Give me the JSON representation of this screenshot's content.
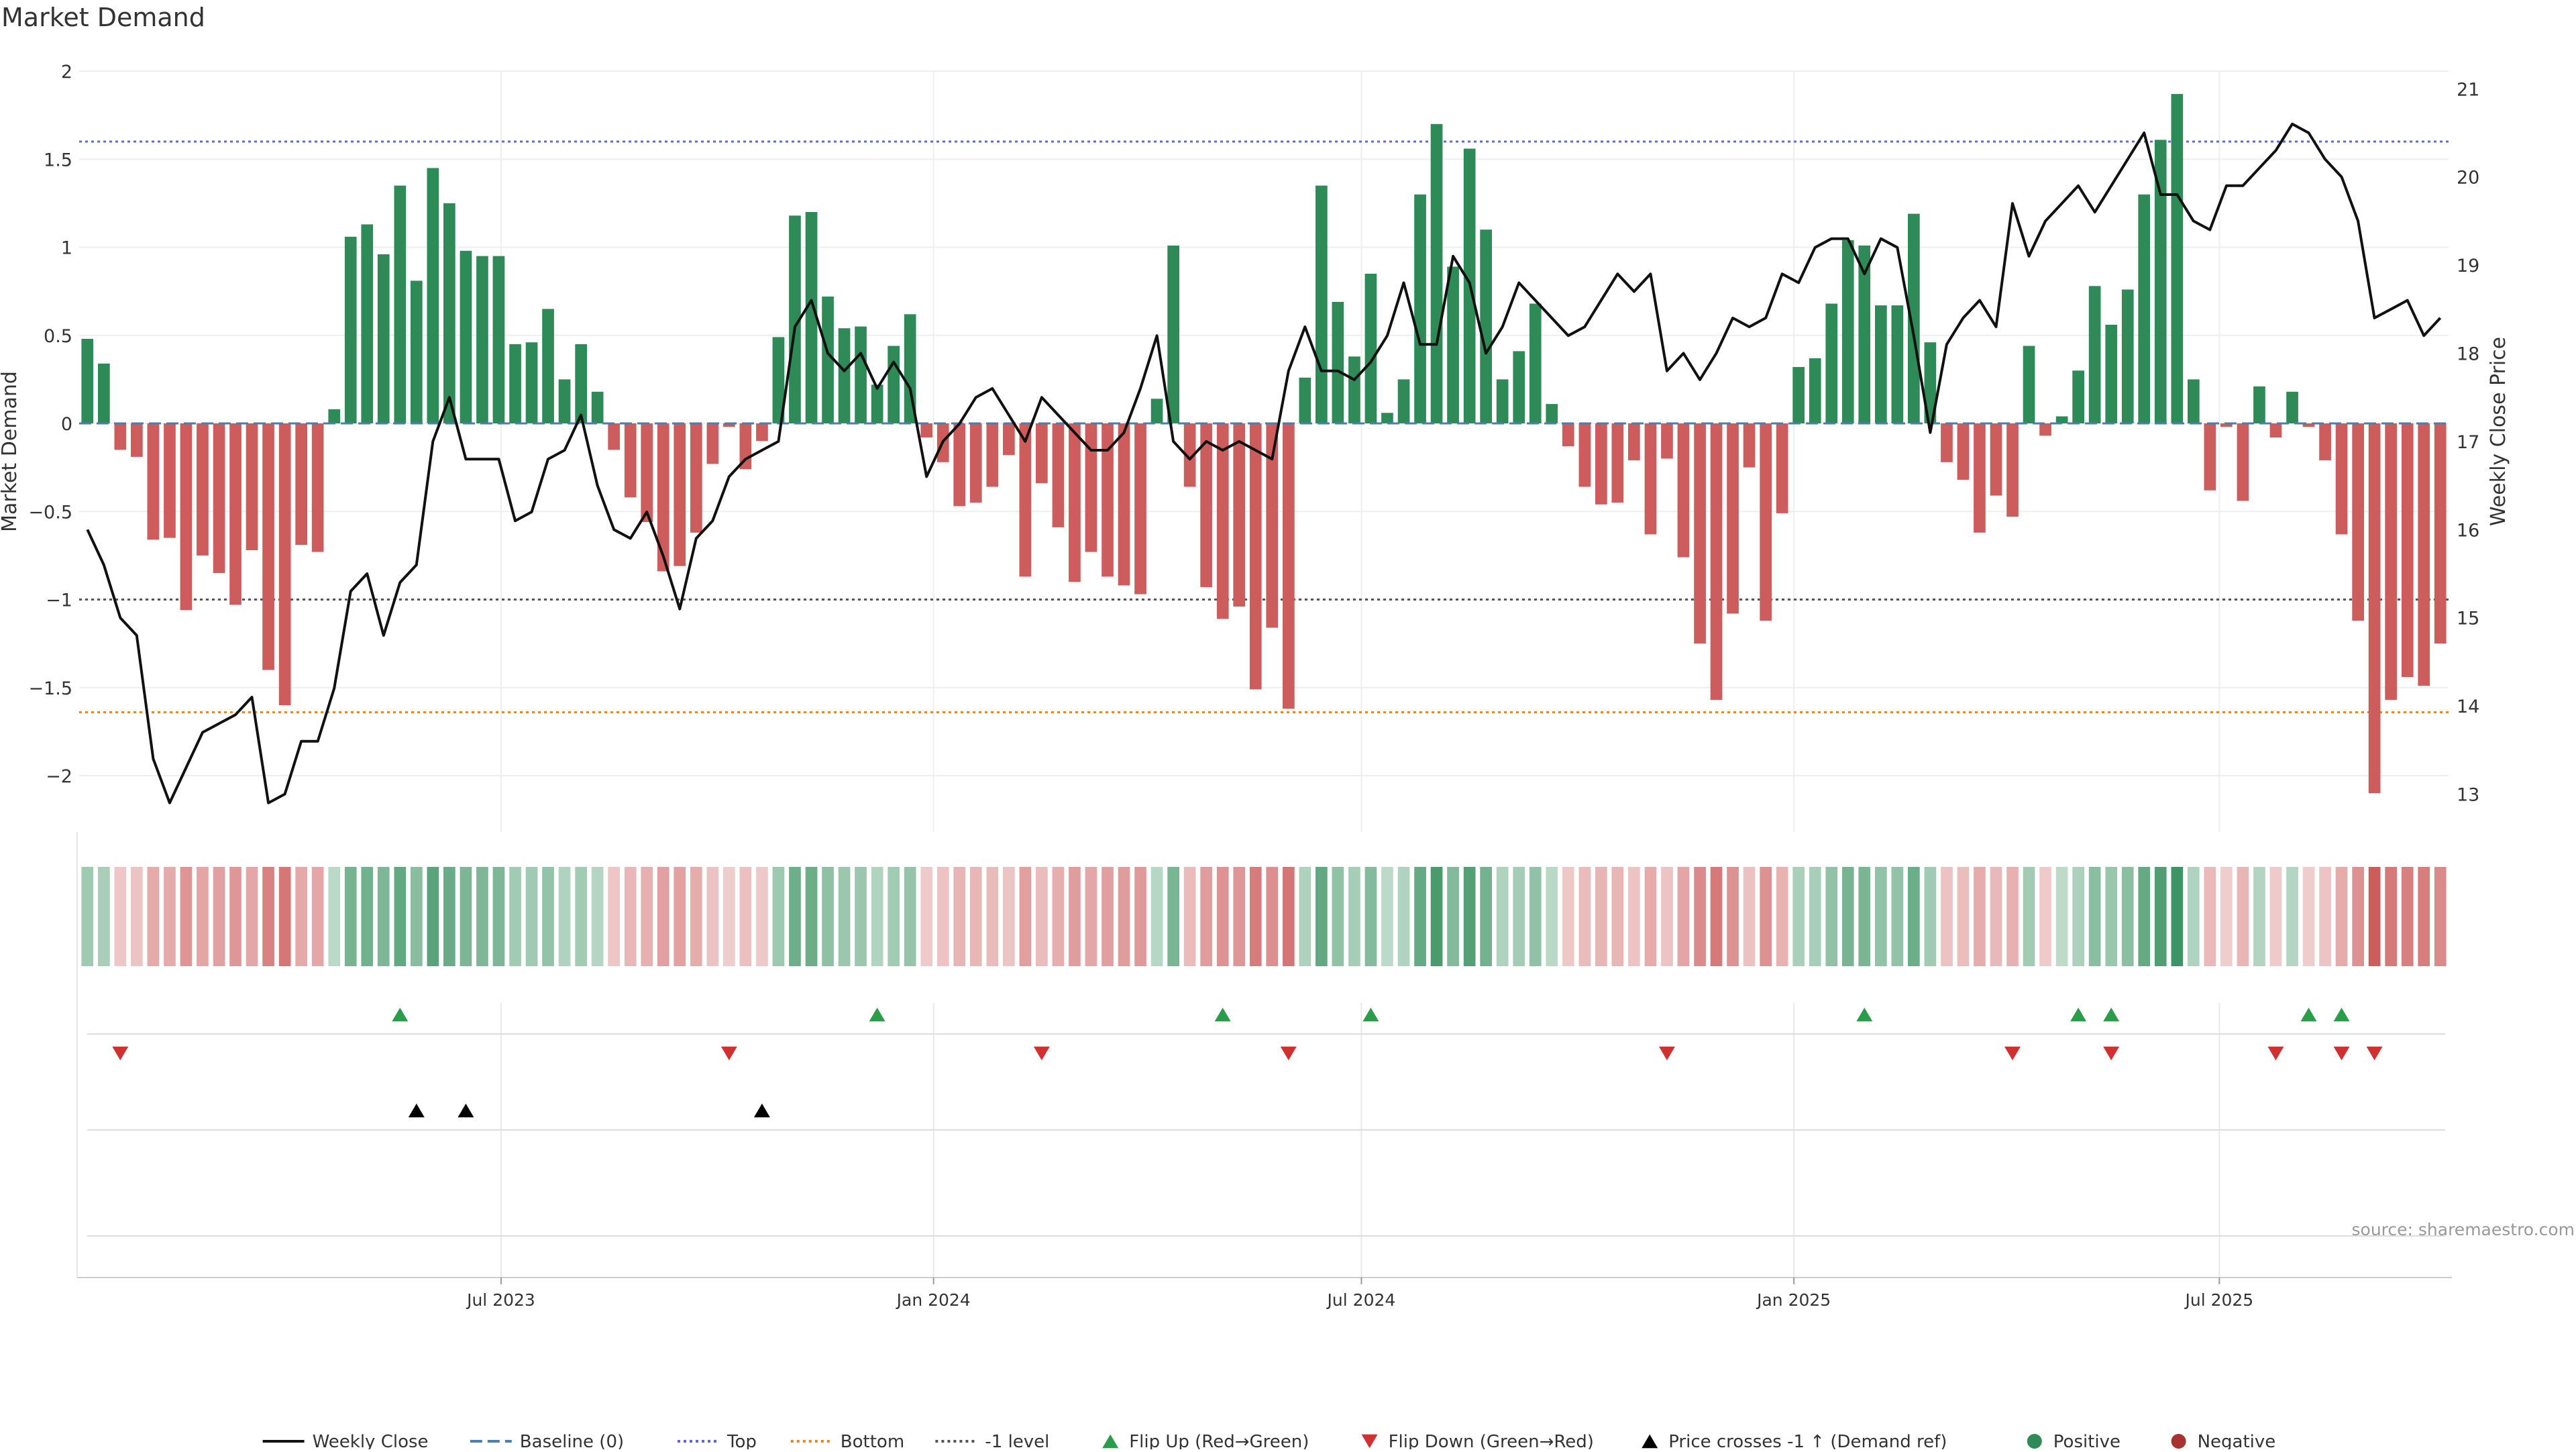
{
  "title": "Market Demand",
  "source": "source: sharemaestro.com",
  "colors": {
    "positive": "#2e8b57",
    "negative": "#cd5c5c",
    "price": "#111111",
    "top_line": "#5b6bd6",
    "bottom_line": "#e0882a",
    "minus1_line": "#555555",
    "flip_up": "#2a9d4a",
    "flip_down": "#d03030",
    "cross": "#000000"
  },
  "chart_data": {
    "type": "bar",
    "start_date": "2023-01-06",
    "week_step_days": 7,
    "demand": [
      0.48,
      0.34,
      -0.15,
      -0.19,
      -0.66,
      -0.65,
      -1.06,
      -0.75,
      -0.85,
      -1.03,
      -0.72,
      -1.4,
      -1.6,
      -0.69,
      -0.73,
      0.08,
      1.06,
      1.13,
      0.96,
      1.35,
      0.81,
      1.45,
      1.25,
      0.98,
      0.95,
      0.95,
      0.45,
      0.46,
      0.65,
      0.25,
      0.45,
      0.18,
      -0.15,
      -0.42,
      -0.56,
      -0.84,
      -0.81,
      -0.62,
      -0.23,
      -0.02,
      -0.26,
      -0.1,
      0.49,
      1.18,
      1.2,
      0.72,
      0.54,
      0.55,
      0.22,
      0.44,
      0.62,
      -0.08,
      -0.22,
      -0.47,
      -0.45,
      -0.36,
      -0.18,
      -0.87,
      -0.34,
      -0.59,
      -0.9,
      -0.73,
      -0.87,
      -0.92,
      -0.97,
      0.14,
      1.01,
      -0.36,
      -0.93,
      -1.11,
      -1.04,
      -1.51,
      -1.16,
      -1.62,
      0.26,
      1.35,
      0.69,
      0.38,
      0.85,
      0.06,
      0.25,
      1.3,
      1.7,
      0.89,
      1.56,
      1.1,
      0.25,
      0.41,
      0.68,
      0.11,
      -0.13,
      -0.36,
      -0.46,
      -0.45,
      -0.21,
      -0.63,
      -0.2,
      -0.76,
      -1.25,
      -1.57,
      -1.08,
      -0.25,
      -1.12,
      -0.51,
      0.32,
      0.37,
      0.68,
      1.04,
      1.01,
      0.67,
      0.67,
      1.19,
      0.46,
      -0.22,
      -0.32,
      -0.62,
      -0.41,
      -0.53,
      0.44,
      -0.07,
      0.04,
      0.3,
      0.78,
      0.56,
      0.76,
      1.3,
      1.61,
      1.87,
      0.25,
      -0.38,
      -0.02,
      -0.44,
      0.21,
      -0.08,
      0.18,
      -0.02,
      -0.21,
      -0.63,
      -1.12,
      -2.1,
      -1.57,
      -1.44,
      -1.49,
      -1.25
    ],
    "weekly_close": [
      16.0,
      15.6,
      15.0,
      14.8,
      13.4,
      12.9,
      13.3,
      13.7,
      13.8,
      13.9,
      14.1,
      12.9,
      13.0,
      13.6,
      13.6,
      14.2,
      15.3,
      15.5,
      14.8,
      15.4,
      15.6,
      17.0,
      17.5,
      16.8,
      16.8,
      16.8,
      16.1,
      16.2,
      16.8,
      16.9,
      17.3,
      16.5,
      16.0,
      15.9,
      16.2,
      15.7,
      15.1,
      15.9,
      16.1,
      16.6,
      16.8,
      16.9,
      17.0,
      18.3,
      18.6,
      18.0,
      17.8,
      18.0,
      17.6,
      17.9,
      17.6,
      16.6,
      17.0,
      17.2,
      17.5,
      17.6,
      17.3,
      17.0,
      17.5,
      17.3,
      17.1,
      16.9,
      16.9,
      17.1,
      17.6,
      18.2,
      17.0,
      16.8,
      17.0,
      16.9,
      17.0,
      16.9,
      16.8,
      17.8,
      18.3,
      17.8,
      17.8,
      17.7,
      17.9,
      18.2,
      18.8,
      18.1,
      18.1,
      19.1,
      18.8,
      18.0,
      18.3,
      18.8,
      18.6,
      18.4,
      18.2,
      18.3,
      18.6,
      18.9,
      18.7,
      18.9,
      17.8,
      18.0,
      17.7,
      18.0,
      18.4,
      18.3,
      18.4,
      18.9,
      18.8,
      19.2,
      19.3,
      19.3,
      18.9,
      19.3,
      19.2,
      18.2,
      17.1,
      18.1,
      18.4,
      18.6,
      18.3,
      19.7,
      19.1,
      19.5,
      19.7,
      19.9,
      19.6,
      19.9,
      20.2,
      20.5,
      19.8,
      19.8,
      19.5,
      19.4,
      19.9,
      19.9,
      20.1,
      20.3,
      20.6,
      20.5,
      20.2,
      20.0,
      19.5,
      18.4,
      18.5,
      18.6,
      18.2,
      18.4
    ],
    "baseline": 0,
    "top_level": 1.6,
    "bottom_level": -1.64,
    "minus1_level": -1,
    "flip_up_dates": [
      "2023-05-19",
      "2023-12-08",
      "2024-05-03",
      "2024-07-05",
      "2025-01-31",
      "2025-05-02",
      "2025-05-16",
      "2025-08-08",
      "2025-08-22"
    ],
    "flip_down_dates": [
      "2023-01-20",
      "2023-10-06",
      "2024-02-16",
      "2024-05-31",
      "2024-11-08",
      "2025-04-04",
      "2025-05-16",
      "2025-07-25",
      "2025-08-22",
      "2025-09-05"
    ],
    "price_cross_dates": [
      "2023-05-26",
      "2023-06-16",
      "2023-10-20"
    ],
    "y_left": {
      "label": "Market Demand",
      "min": -2.32,
      "max": 2.0,
      "ticks": [
        2,
        1.5,
        1,
        0.5,
        0,
        -0.5,
        -1,
        -1.5,
        -2
      ],
      "tick_labels": [
        "2",
        "1.5",
        "1",
        "0.5",
        "0",
        "−0.5",
        "−1",
        "−1.5",
        "−2"
      ]
    },
    "y_right": {
      "label": "Weekly Close Price",
      "min": 12.57,
      "max": 21.2,
      "ticks": [
        21,
        20,
        19,
        18,
        17,
        16,
        15,
        14,
        13
      ],
      "tick_labels": [
        "21",
        "20",
        "19",
        "18",
        "17",
        "16",
        "15",
        "14",
        "13"
      ]
    },
    "x_ticks": [
      {
        "date": "2023-07-01",
        "label": "Jul 2023"
      },
      {
        "date": "2024-01-01",
        "label": "Jan 2024"
      },
      {
        "date": "2024-07-01",
        "label": "Jul 2024"
      },
      {
        "date": "2025-01-01",
        "label": "Jan 2025"
      },
      {
        "date": "2025-07-01",
        "label": "Jul 2025"
      }
    ],
    "legend": [
      {
        "kind": "line",
        "label": "Weekly Close",
        "color": "#111111",
        "dash": ""
      },
      {
        "kind": "line",
        "label": "Baseline (0)",
        "color": "#4a7fb5",
        "dash": "18,8"
      },
      {
        "kind": "line",
        "label": "Top",
        "color": "#5b6bd6",
        "dash": "4,5"
      },
      {
        "kind": "line",
        "label": "Bottom",
        "color": "#e0882a",
        "dash": "4,5"
      },
      {
        "kind": "line",
        "label": "-1 level",
        "color": "#555555",
        "dash": "4,5"
      },
      {
        "kind": "tri-up",
        "label": "Flip Up (Red→Green)",
        "color": "#2a9d4a"
      },
      {
        "kind": "tri-down",
        "label": "Flip Down (Green→Red)",
        "color": "#d03030"
      },
      {
        "kind": "tri-up",
        "label": "Price crosses -1 ↑ (Demand ref)",
        "color": "#000000"
      },
      {
        "kind": "dot",
        "label": "Positive",
        "color": "#2e8b57"
      },
      {
        "kind": "dot",
        "label": "Negative",
        "color": "#a83232"
      }
    ],
    "legend_position": "bottom-center",
    "grid": true
  }
}
